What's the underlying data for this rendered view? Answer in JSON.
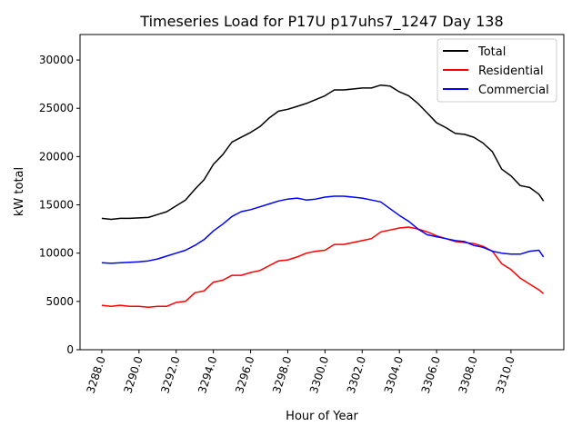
{
  "chart_data": {
    "type": "line",
    "title": "Timeseries Load for P17U p17uhs7_1247  Day 138",
    "xlabel": "Hour of Year",
    "ylabel": "kW total",
    "xlim": [
      3286.83,
      3312.84
    ],
    "ylim": [
      0,
      32640
    ],
    "xticks": [
      3288,
      3290,
      3292,
      3294,
      3296,
      3298,
      3300,
      3302,
      3304,
      3306,
      3308,
      3310
    ],
    "xtick_labels": [
      "3288.0",
      "3290.0",
      "3292.0",
      "3294.0",
      "3296.0",
      "3298.0",
      "3300.0",
      "3302.0",
      "3304.0",
      "3306.0",
      "3308.0",
      "3310.0"
    ],
    "yticks": [
      0,
      5000,
      10000,
      15000,
      20000,
      25000,
      30000
    ],
    "ytick_labels": [
      "0",
      "5000",
      "10000",
      "15000",
      "20000",
      "25000",
      "30000"
    ],
    "grid": false,
    "legend_position": "top-right",
    "x": [
      3288,
      3288.5,
      3289,
      3289.5,
      3290,
      3290.5,
      3291,
      3291.5,
      3292,
      3292.5,
      3293,
      3293.5,
      3294,
      3294.5,
      3295,
      3295.5,
      3296,
      3296.5,
      3297,
      3297.5,
      3298,
      3298.5,
      3299,
      3299.5,
      3300,
      3300.5,
      3301,
      3301.5,
      3302,
      3302.5,
      3303,
      3303.5,
      3304,
      3304.5,
      3305,
      3305.5,
      3306,
      3306.5,
      3307,
      3307.5,
      3308,
      3308.5,
      3309,
      3309.5,
      3310,
      3310.5,
      3311,
      3311.5,
      3311.75
    ],
    "series": [
      {
        "name": "Total",
        "color": "#000000",
        "values": [
          13600,
          13500,
          13600,
          13600,
          13650,
          13700,
          14000,
          14300,
          14900,
          15500,
          16600,
          17600,
          19200,
          20200,
          21500,
          22000,
          22500,
          23100,
          24000,
          24700,
          24900,
          25200,
          25500,
          25900,
          26300,
          26900,
          26900,
          27000,
          27100,
          27100,
          27400,
          27300,
          26700,
          26300,
          25500,
          24500,
          23500,
          23000,
          22400,
          22300,
          22000,
          21400,
          20500,
          18700,
          18000,
          17000,
          16800,
          16100,
          15400
        ]
      },
      {
        "name": "Residential",
        "color": "#ff0000",
        "values": [
          4600,
          4500,
          4600,
          4500,
          4500,
          4400,
          4500,
          4500,
          4900,
          5000,
          5900,
          6100,
          7000,
          7200,
          7700,
          7700,
          8000,
          8200,
          8700,
          9200,
          9300,
          9600,
          10000,
          10200,
          10300,
          10900,
          10900,
          11100,
          11300,
          11500,
          12200,
          12400,
          12600,
          12700,
          12500,
          12200,
          11800,
          11500,
          11200,
          11100,
          11000,
          10700,
          10200,
          8900,
          8300,
          7400,
          6800,
          6200,
          5800
        ]
      },
      {
        "name": "Commercial",
        "color": "#0000ff",
        "values": [
          9000,
          8950,
          9000,
          9050,
          9100,
          9200,
          9400,
          9700,
          10000,
          10300,
          10800,
          11400,
          12300,
          13000,
          13800,
          14300,
          14500,
          14800,
          15100,
          15400,
          15600,
          15700,
          15500,
          15600,
          15800,
          15900,
          15900,
          15800,
          15700,
          15500,
          15300,
          14600,
          13900,
          13300,
          12500,
          11900,
          11700,
          11500,
          11300,
          11200,
          10800,
          10600,
          10200,
          10000,
          9900,
          9900,
          10200,
          10300,
          9600
        ]
      }
    ]
  }
}
